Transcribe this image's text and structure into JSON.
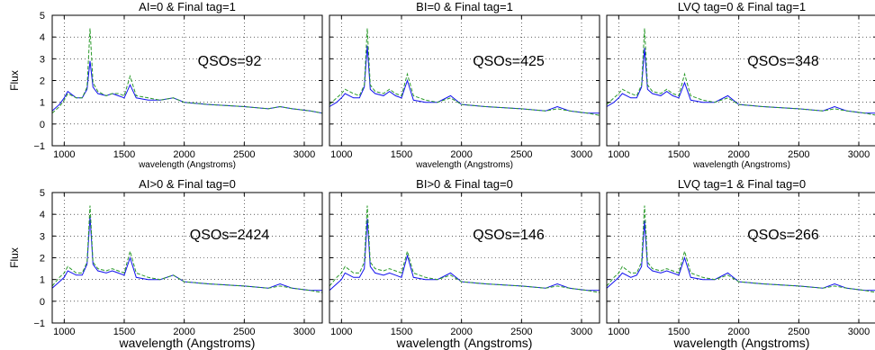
{
  "chart_data": [
    {
      "type": "line",
      "title": "AI=0 & Final tag=1",
      "annotation": "QSOs=92",
      "xlabel": "wavelength (Angstroms)",
      "ylabel": "Flux",
      "xlim": [
        900,
        3150
      ],
      "ylim": [
        -1,
        5
      ],
      "xticks": [
        1000,
        1500,
        2000,
        2500,
        3000
      ],
      "yticks": [
        -1,
        0,
        1,
        2,
        3,
        4,
        5
      ],
      "series": [
        {
          "color": "#1010ee",
          "x": [
            900,
            960,
            1000,
            1030,
            1100,
            1150,
            1190,
            1215,
            1240,
            1280,
            1350,
            1400,
            1450,
            1500,
            1549,
            1600,
            1700,
            1800,
            1909,
            2000,
            2200,
            2500,
            2700,
            2798,
            2900,
            3050,
            3150
          ],
          "y": [
            0.6,
            0.9,
            1.2,
            1.5,
            1.2,
            1.2,
            1.6,
            2.9,
            1.7,
            1.4,
            1.3,
            1.4,
            1.3,
            1.2,
            1.8,
            1.2,
            1.1,
            1.1,
            1.2,
            1.0,
            0.9,
            0.8,
            0.7,
            0.8,
            0.7,
            0.6,
            0.5
          ]
        },
        {
          "color": "#2a9a2a",
          "x": [
            900,
            960,
            1000,
            1030,
            1100,
            1150,
            1190,
            1215,
            1240,
            1280,
            1350,
            1400,
            1450,
            1500,
            1549,
            1600,
            1700,
            1800,
            1909,
            2000,
            2200,
            2500,
            2700,
            2798,
            2900,
            3050,
            3150
          ],
          "y": [
            0.5,
            0.8,
            1.1,
            1.4,
            1.2,
            1.2,
            1.7,
            4.4,
            1.9,
            1.5,
            1.3,
            1.4,
            1.4,
            1.3,
            2.2,
            1.3,
            1.2,
            1.1,
            1.2,
            1.0,
            0.9,
            0.8,
            0.7,
            0.8,
            0.7,
            0.6,
            0.5
          ]
        }
      ]
    },
    {
      "type": "line",
      "title": "BI=0 & Final tag=1",
      "annotation": "QSOs=425",
      "xlabel": "wavelength (Angstroms)",
      "ylabel": "",
      "xlim": [
        900,
        3150
      ],
      "ylim": [
        -1,
        5
      ],
      "xticks": [
        1000,
        1500,
        2000,
        2500,
        3000
      ],
      "yticks": [
        -1,
        0,
        1,
        2,
        3,
        4,
        5
      ],
      "series": [
        {
          "color": "#1010ee",
          "x": [
            900,
            960,
            1000,
            1030,
            1100,
            1150,
            1190,
            1215,
            1240,
            1280,
            1350,
            1400,
            1450,
            1500,
            1549,
            1600,
            1700,
            1800,
            1909,
            2000,
            2200,
            2500,
            2700,
            2798,
            2900,
            3050,
            3150
          ],
          "y": [
            0.8,
            1.0,
            1.2,
            1.4,
            1.2,
            1.2,
            1.7,
            3.6,
            1.6,
            1.4,
            1.3,
            1.5,
            1.3,
            1.2,
            2.0,
            1.1,
            1.0,
            1.0,
            1.3,
            0.9,
            0.8,
            0.7,
            0.6,
            0.8,
            0.6,
            0.5,
            0.5
          ]
        },
        {
          "color": "#2a9a2a",
          "x": [
            900,
            960,
            1000,
            1030,
            1100,
            1150,
            1190,
            1215,
            1240,
            1280,
            1350,
            1400,
            1450,
            1500,
            1549,
            1600,
            1700,
            1800,
            1909,
            2000,
            2200,
            2500,
            2700,
            2798,
            2900,
            3050,
            3150
          ],
          "y": [
            0.9,
            1.2,
            1.4,
            1.6,
            1.4,
            1.3,
            1.8,
            4.4,
            1.8,
            1.5,
            1.4,
            1.6,
            1.4,
            1.3,
            2.3,
            1.3,
            1.1,
            1.0,
            1.2,
            0.9,
            0.8,
            0.7,
            0.6,
            0.7,
            0.6,
            0.5,
            0.4
          ]
        }
      ]
    },
    {
      "type": "line",
      "title": "LVQ tag=0 & Final tag=1",
      "annotation": "QSOs=348",
      "xlabel": "wavelength (Angstroms)",
      "ylabel": "",
      "xlim": [
        900,
        3150
      ],
      "ylim": [
        -1,
        5
      ],
      "xticks": [
        1000,
        1500,
        2000,
        2500,
        3000
      ],
      "yticks": [
        -1,
        0,
        1,
        2,
        3,
        4,
        5
      ],
      "series": [
        {
          "color": "#1010ee",
          "x": [
            900,
            960,
            1000,
            1030,
            1100,
            1150,
            1190,
            1215,
            1240,
            1280,
            1350,
            1400,
            1450,
            1500,
            1549,
            1600,
            1700,
            1800,
            1909,
            2000,
            2200,
            2500,
            2700,
            2798,
            2900,
            3050,
            3150
          ],
          "y": [
            0.8,
            1.0,
            1.2,
            1.4,
            1.2,
            1.2,
            1.7,
            3.5,
            1.6,
            1.4,
            1.3,
            1.5,
            1.3,
            1.2,
            1.9,
            1.1,
            1.0,
            1.0,
            1.3,
            0.9,
            0.8,
            0.7,
            0.6,
            0.8,
            0.6,
            0.5,
            0.5
          ]
        },
        {
          "color": "#2a9a2a",
          "x": [
            900,
            960,
            1000,
            1030,
            1100,
            1150,
            1190,
            1215,
            1240,
            1280,
            1350,
            1400,
            1450,
            1500,
            1549,
            1600,
            1700,
            1800,
            1909,
            2000,
            2200,
            2500,
            2700,
            2798,
            2900,
            3050,
            3150
          ],
          "y": [
            0.9,
            1.2,
            1.4,
            1.6,
            1.4,
            1.3,
            1.8,
            4.4,
            1.8,
            1.5,
            1.4,
            1.6,
            1.4,
            1.3,
            2.3,
            1.3,
            1.1,
            1.0,
            1.2,
            0.9,
            0.8,
            0.7,
            0.6,
            0.7,
            0.6,
            0.5,
            0.4
          ]
        }
      ]
    },
    {
      "type": "line",
      "title": "AI>0 & Final tag=0",
      "annotation": "QSOs=2424",
      "xlabel": "wavelength (Angstroms)",
      "ylabel": "Flux",
      "xlim": [
        900,
        3150
      ],
      "ylim": [
        -1,
        5
      ],
      "xticks": [
        1000,
        1500,
        2000,
        2500,
        3000
      ],
      "yticks": [
        -1,
        0,
        1,
        2,
        3,
        4,
        5
      ],
      "series": [
        {
          "color": "#1010ee",
          "x": [
            900,
            960,
            1000,
            1030,
            1100,
            1150,
            1190,
            1215,
            1240,
            1280,
            1350,
            1400,
            1450,
            1500,
            1549,
            1600,
            1700,
            1800,
            1909,
            2000,
            2200,
            2500,
            2700,
            2798,
            2900,
            3050,
            3150
          ],
          "y": [
            0.6,
            0.9,
            1.1,
            1.4,
            1.2,
            1.2,
            1.7,
            3.9,
            1.7,
            1.4,
            1.3,
            1.4,
            1.3,
            1.2,
            2.0,
            1.1,
            1.0,
            1.0,
            1.2,
            0.9,
            0.8,
            0.7,
            0.6,
            0.8,
            0.6,
            0.5,
            0.5
          ]
        },
        {
          "color": "#2a9a2a",
          "x": [
            900,
            960,
            1000,
            1030,
            1100,
            1150,
            1190,
            1215,
            1240,
            1280,
            1350,
            1400,
            1450,
            1500,
            1549,
            1600,
            1700,
            1800,
            1909,
            2000,
            2200,
            2500,
            2700,
            2798,
            2900,
            3050,
            3150
          ],
          "y": [
            0.7,
            1.1,
            1.3,
            1.6,
            1.3,
            1.3,
            1.8,
            4.4,
            1.8,
            1.5,
            1.4,
            1.5,
            1.4,
            1.3,
            2.3,
            1.3,
            1.1,
            1.0,
            1.2,
            0.9,
            0.8,
            0.7,
            0.6,
            0.7,
            0.6,
            0.5,
            0.4
          ]
        }
      ]
    },
    {
      "type": "line",
      "title": "BI>0 & Final tag=0",
      "annotation": "QSOs=146",
      "xlabel": "wavelength (Angstroms)",
      "ylabel": "",
      "xlim": [
        900,
        3150
      ],
      "ylim": [
        -1,
        5
      ],
      "xticks": [
        1000,
        1500,
        2000,
        2500,
        3000
      ],
      "yticks": [
        -1,
        0,
        1,
        2,
        3,
        4,
        5
      ],
      "series": [
        {
          "color": "#1010ee",
          "x": [
            900,
            960,
            1000,
            1030,
            1100,
            1150,
            1190,
            1215,
            1240,
            1280,
            1350,
            1400,
            1450,
            1500,
            1549,
            1600,
            1700,
            1800,
            1909,
            2000,
            2200,
            2500,
            2700,
            2798,
            2900,
            3050,
            3150
          ],
          "y": [
            0.5,
            0.8,
            1.0,
            1.3,
            1.1,
            1.1,
            1.5,
            3.8,
            1.6,
            1.3,
            1.2,
            1.3,
            1.2,
            1.1,
            2.1,
            1.1,
            1.0,
            1.0,
            1.3,
            0.9,
            0.8,
            0.7,
            0.6,
            0.8,
            0.6,
            0.5,
            0.5
          ]
        },
        {
          "color": "#2a9a2a",
          "x": [
            900,
            960,
            1000,
            1030,
            1100,
            1150,
            1190,
            1215,
            1240,
            1280,
            1350,
            1400,
            1450,
            1500,
            1549,
            1600,
            1700,
            1800,
            1909,
            2000,
            2200,
            2500,
            2700,
            2798,
            2900,
            3050,
            3150
          ],
          "y": [
            0.7,
            1.1,
            1.3,
            1.6,
            1.3,
            1.3,
            1.8,
            4.4,
            1.8,
            1.5,
            1.4,
            1.5,
            1.4,
            1.3,
            2.3,
            1.3,
            1.1,
            1.0,
            1.2,
            0.9,
            0.8,
            0.7,
            0.6,
            0.7,
            0.6,
            0.5,
            0.4
          ]
        }
      ]
    },
    {
      "type": "line",
      "title": "LVQ tag=1 & Final tag=0",
      "annotation": "QSOs=266",
      "xlabel": "wavelength (Angstroms)",
      "ylabel": "",
      "xlim": [
        900,
        3150
      ],
      "ylim": [
        -1,
        5
      ],
      "xticks": [
        1000,
        1500,
        2000,
        2500,
        3000
      ],
      "yticks": [
        -1,
        0,
        1,
        2,
        3,
        4,
        5
      ],
      "series": [
        {
          "color": "#1010ee",
          "x": [
            900,
            960,
            1000,
            1030,
            1100,
            1150,
            1190,
            1215,
            1240,
            1280,
            1350,
            1400,
            1450,
            1500,
            1549,
            1600,
            1700,
            1800,
            1909,
            2000,
            2200,
            2500,
            2700,
            2798,
            2900,
            3050,
            3150
          ],
          "y": [
            0.6,
            0.9,
            1.1,
            1.3,
            1.1,
            1.2,
            1.6,
            3.7,
            1.6,
            1.4,
            1.3,
            1.4,
            1.3,
            1.2,
            2.0,
            1.1,
            1.0,
            1.0,
            1.3,
            0.9,
            0.8,
            0.7,
            0.6,
            0.8,
            0.6,
            0.5,
            0.5
          ]
        },
        {
          "color": "#2a9a2a",
          "x": [
            900,
            960,
            1000,
            1030,
            1100,
            1150,
            1190,
            1215,
            1240,
            1280,
            1350,
            1400,
            1450,
            1500,
            1549,
            1600,
            1700,
            1800,
            1909,
            2000,
            2200,
            2500,
            2700,
            2798,
            2900,
            3050,
            3150
          ],
          "y": [
            0.7,
            1.1,
            1.3,
            1.6,
            1.3,
            1.3,
            1.8,
            4.4,
            1.8,
            1.5,
            1.4,
            1.5,
            1.4,
            1.3,
            2.3,
            1.3,
            1.1,
            1.0,
            1.2,
            0.9,
            0.8,
            0.7,
            0.6,
            0.7,
            0.6,
            0.5,
            0.4
          ]
        }
      ]
    }
  ]
}
